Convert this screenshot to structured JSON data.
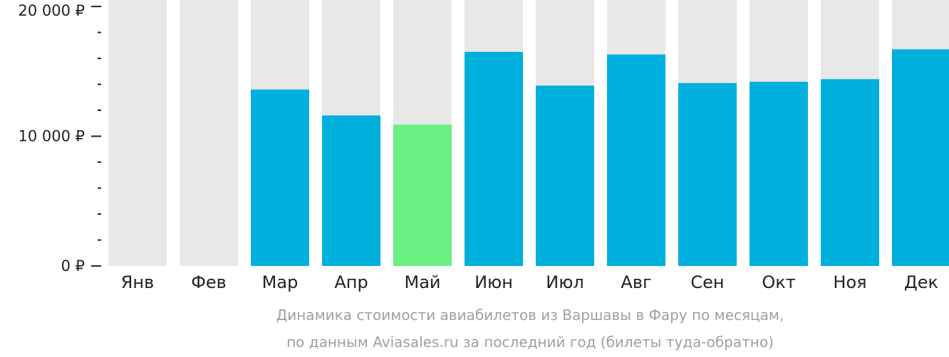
{
  "chart_data": {
    "type": "bar",
    "categories": [
      "Янв",
      "Фев",
      "Мар",
      "Апр",
      "Май",
      "Июн",
      "Июл",
      "Авг",
      "Сен",
      "Окт",
      "Ноя",
      "Дек"
    ],
    "values": [
      null,
      null,
      13600,
      11600,
      10900,
      16500,
      13900,
      16300,
      14100,
      14200,
      14400,
      16700
    ],
    "ylim": [
      0,
      20500
    ],
    "y_ticks": [
      0,
      10000,
      20000
    ],
    "y_tick_labels": [
      "0 ₽",
      "10 000 ₽",
      "20 000 ₽"
    ],
    "minor_tick_step": 2000,
    "highlight_category": "Май",
    "colors": {
      "bar": "#00b0dc",
      "highlight": "#6cf083",
      "background_bar": "#e8e8e8",
      "axis_text": "#222222",
      "caption": "#a0a0a0"
    },
    "caption": [
      "Динамика стоимости авиабилетов из Варшавы в Фару по месяцам,",
      "по данным Aviasales.ru за последний год (билеты туда-обратно)"
    ]
  }
}
